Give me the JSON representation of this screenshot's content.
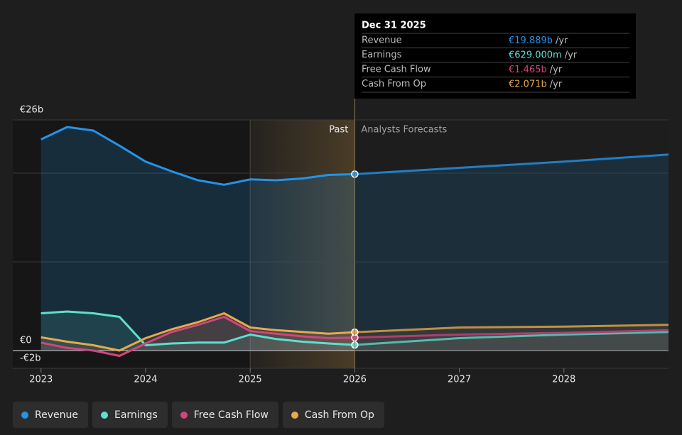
{
  "chart_data": {
    "type": "line",
    "x": [
      2023,
      2023.25,
      2023.5,
      2023.75,
      2024,
      2024.25,
      2024.5,
      2024.75,
      2025,
      2025.25,
      2025.5,
      2025.75,
      2026,
      2027,
      2028,
      2029
    ],
    "xlim": [
      2022.73,
      2029
    ],
    "xticks": [
      {
        "value": 2023,
        "label": "2023"
      },
      {
        "value": 2024,
        "label": "2024"
      },
      {
        "value": 2025,
        "label": "2025"
      },
      {
        "value": 2026,
        "label": "2026"
      },
      {
        "value": 2027,
        "label": "2027"
      },
      {
        "value": 2028,
        "label": "2028"
      }
    ],
    "ylim": [
      -2,
      26
    ],
    "yticks": [
      {
        "value": -2,
        "label": "-€2b"
      },
      {
        "value": 0,
        "label": "€0"
      },
      {
        "value": 10,
        "label": null
      },
      {
        "value": 20,
        "label": null
      },
      {
        "value": 26,
        "label": "€26b"
      }
    ],
    "grid": true,
    "past_label": "Past",
    "forecast_label": "Analysts Forecasts",
    "highlight_start": 2025,
    "forecast_start": 2026,
    "series": [
      {
        "name": "Revenue",
        "color": "#2394e8",
        "values": [
          23.8,
          25.2,
          24.8,
          23.1,
          21.3,
          20.2,
          19.2,
          18.7,
          19.3,
          19.2,
          19.4,
          19.8,
          19.889,
          20.6,
          21.3,
          22.1
        ]
      },
      {
        "name": "Earnings",
        "color": "#5ce0d0",
        "values": [
          4.2,
          4.4,
          4.2,
          3.8,
          0.6,
          0.8,
          0.9,
          0.9,
          1.8,
          1.3,
          1.0,
          0.8,
          0.629,
          1.4,
          1.8,
          2.1
        ]
      },
      {
        "name": "Free Cash Flow",
        "color": "#d0467f",
        "values": [
          0.9,
          0.3,
          0,
          -0.6,
          0.8,
          2.1,
          2.9,
          3.8,
          2.2,
          1.9,
          1.6,
          1.4,
          1.465,
          1.8,
          2.0,
          2.3
        ]
      },
      {
        "name": "Cash From Op",
        "color": "#e8a94a",
        "values": [
          1.5,
          1.0,
          0.6,
          0,
          1.4,
          2.4,
          3.2,
          4.2,
          2.6,
          2.3,
          2.1,
          1.9,
          2.071,
          2.6,
          2.7,
          2.9
        ]
      }
    ],
    "tooltip": {
      "title": "Dec 31 2025",
      "index": 12,
      "rows": [
        {
          "label": "Revenue",
          "value": "€19.889b",
          "unit": "/yr"
        },
        {
          "label": "Earnings",
          "value": "€629.000m",
          "unit": "/yr"
        },
        {
          "label": "Free Cash Flow",
          "value": "€1.465b",
          "unit": "/yr"
        },
        {
          "label": "Cash From Op",
          "value": "€2.071b",
          "unit": "/yr"
        }
      ]
    }
  }
}
